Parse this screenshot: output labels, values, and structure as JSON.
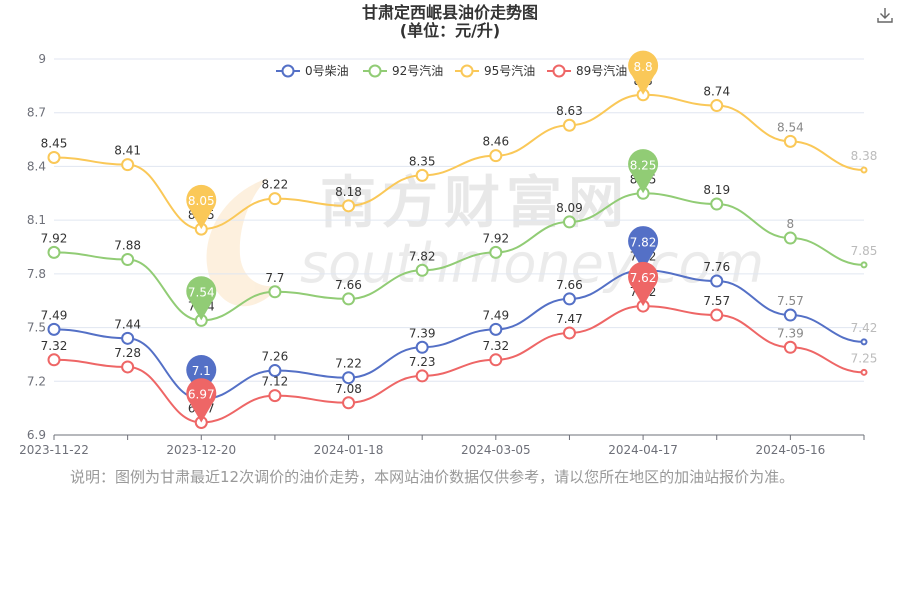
{
  "title": "甘肃定西岷县油价走势图",
  "subtitle": "(单位：元/升)",
  "note": "说明：图例为甘肃最近12次调价的油价走势，本网站油价数据仅供参考，请以您所在地区的加油站报价为准。",
  "watermark": {
    "cn": "南方财富网",
    "en": "southmoney.com"
  },
  "download_icon": "download-icon",
  "chart_data": {
    "type": "line",
    "x_tick_labels": [
      "2023-11-22",
      "2023-12-20",
      "2024-01-18",
      "2024-03-05",
      "2024-04-17",
      "2024-05-16"
    ],
    "y_ticks": [
      6.9,
      7.2,
      7.5,
      7.8,
      8.1,
      8.4,
      8.7,
      9
    ],
    "ylim": [
      6.9,
      9
    ],
    "grid": "horizontal",
    "legend_position": "top",
    "series": [
      {
        "name": "0号柴油",
        "color": "#5470c6",
        "values": [
          7.49,
          7.44,
          7.1,
          7.26,
          7.22,
          7.39,
          7.49,
          7.66,
          7.82,
          7.76,
          7.57,
          7.42
        ],
        "labels": [
          "7.49",
          "7.44",
          "7.1",
          "7.26",
          "7.22",
          "7.39",
          "7.49",
          "7.66",
          "7.82",
          "7.76",
          "7.57",
          "7.42"
        ]
      },
      {
        "name": "92号汽油",
        "color": "#91cc75",
        "values": [
          7.92,
          7.88,
          7.54,
          7.7,
          7.66,
          7.82,
          7.92,
          8.09,
          8.25,
          8.19,
          8,
          7.85
        ],
        "labels": [
          "7.92",
          "7.88",
          "7.54",
          "7.7",
          "7.66",
          "7.82",
          "7.92",
          "8.09",
          "8.25",
          "8.19",
          "8",
          "7.85"
        ]
      },
      {
        "name": "95号汽油",
        "color": "#fac858",
        "values": [
          8.45,
          8.41,
          8.05,
          8.22,
          8.18,
          8.35,
          8.46,
          8.63,
          8.8,
          8.74,
          8.54,
          8.38
        ],
        "labels": [
          "8.45",
          "8.41",
          "8.05",
          "8.22",
          "8.18",
          "8.35",
          "8.46",
          "8.63",
          "8.8",
          "8.74",
          "8.54",
          "8.38"
        ]
      },
      {
        "name": "89号汽油",
        "color": "#ee6666",
        "values": [
          7.32,
          7.28,
          6.97,
          7.12,
          7.08,
          7.23,
          7.32,
          7.47,
          7.62,
          7.57,
          7.39,
          7.25
        ],
        "labels": [
          "7.32",
          "7.28",
          "6.97",
          "7.12",
          "7.08",
          "7.23",
          "7.32",
          "7.47",
          "7.62",
          "7.57",
          "7.39",
          "7.25"
        ]
      }
    ],
    "min_markers": [
      {
        "series": 0,
        "index": 2,
        "label": "7.1"
      },
      {
        "series": 1,
        "index": 2,
        "label": "7.54"
      },
      {
        "series": 2,
        "index": 2,
        "label": "8.05"
      },
      {
        "series": 3,
        "index": 2,
        "label": "6.97"
      }
    ],
    "max_markers": [
      {
        "series": 0,
        "index": 8,
        "label": "7.82"
      },
      {
        "series": 1,
        "index": 8,
        "label": "8.25"
      },
      {
        "series": 2,
        "index": 8,
        "label": "8.8"
      },
      {
        "series": 3,
        "index": 8,
        "label": "7.62"
      }
    ]
  }
}
